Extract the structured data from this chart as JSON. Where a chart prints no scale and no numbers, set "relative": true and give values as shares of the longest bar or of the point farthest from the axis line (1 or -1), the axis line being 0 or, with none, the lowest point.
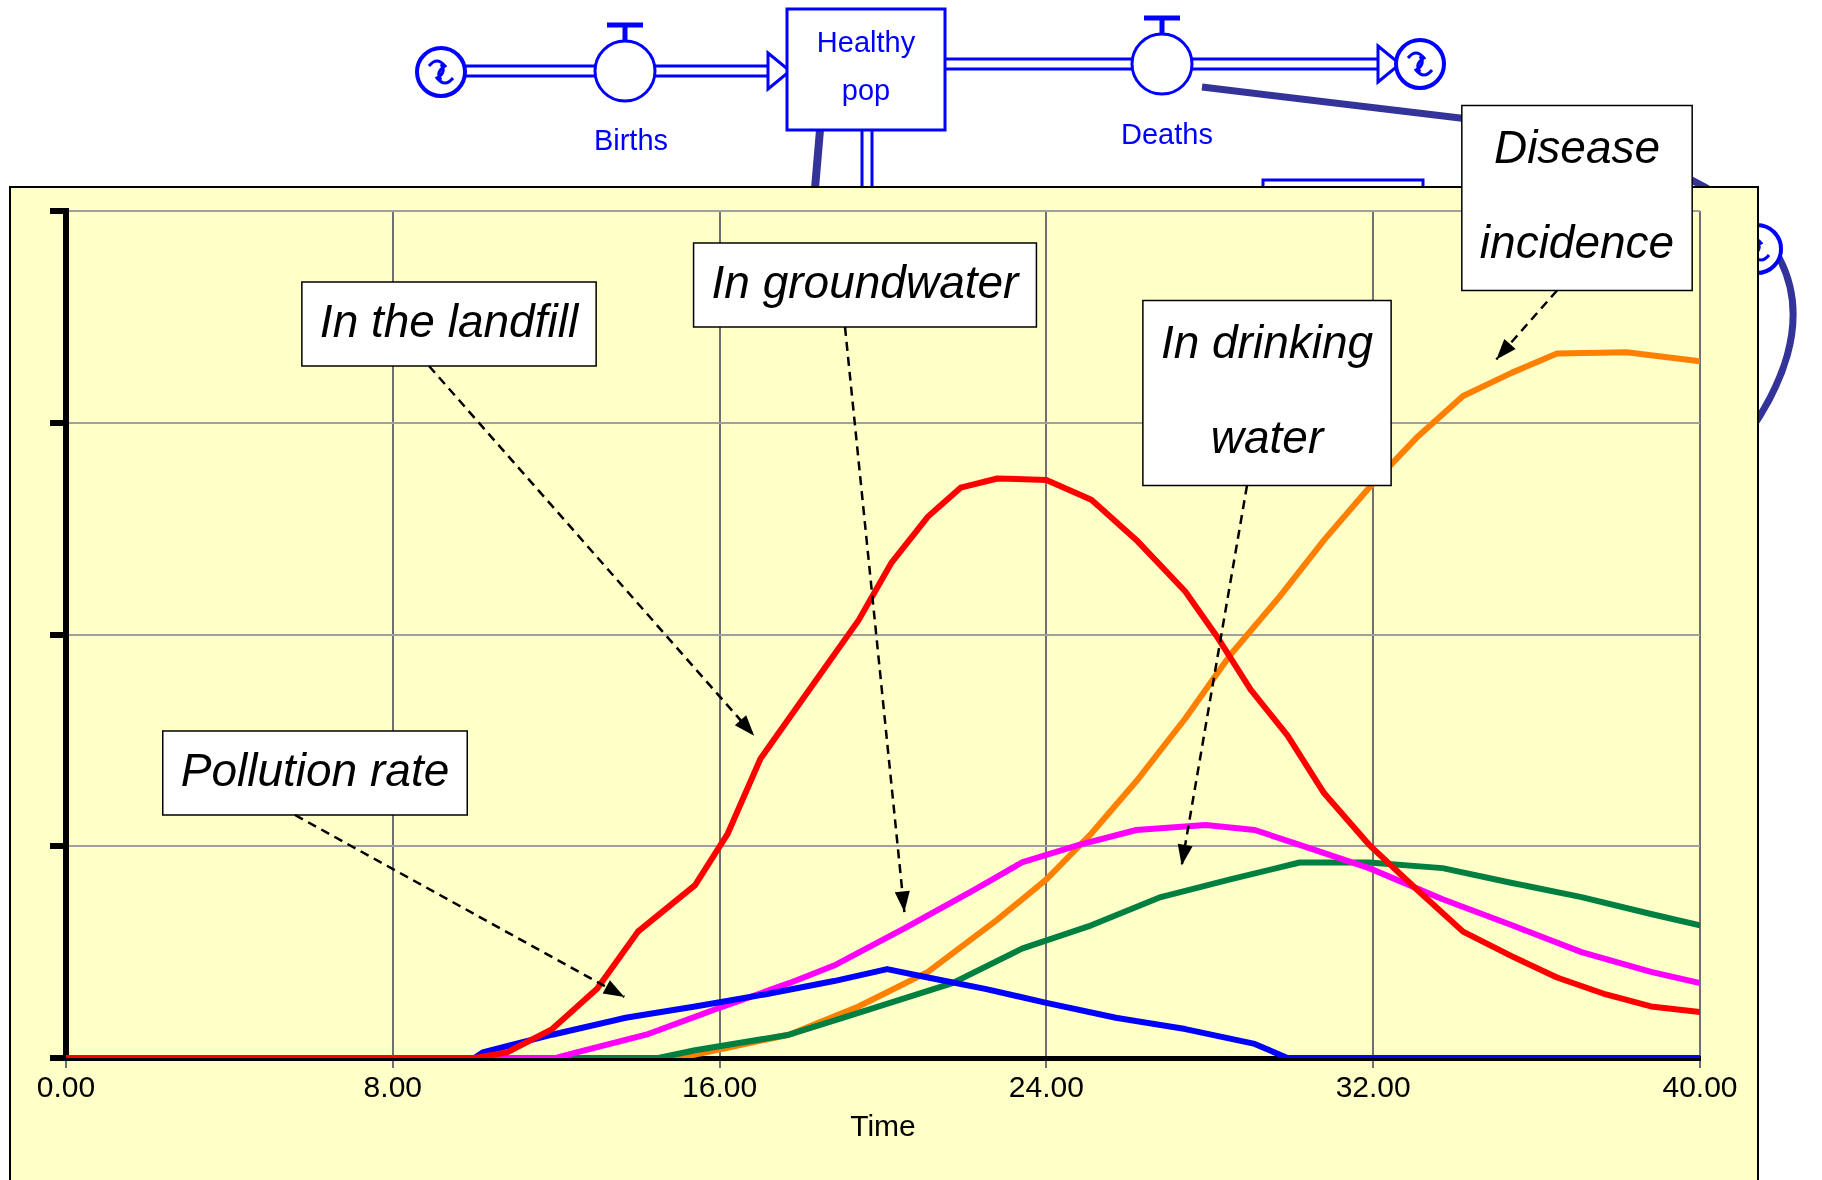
{
  "chart_data": {
    "type": "line",
    "xlabel": "Time",
    "relative": true,
    "grid": true,
    "marker": "none",
    "line_style": "solid",
    "xlim": [
      0,
      40
    ],
    "xticks": [
      {
        "value": 0,
        "label": "0.00"
      },
      {
        "value": 8,
        "label": "8.00"
      },
      {
        "value": 16,
        "label": "16.00"
      },
      {
        "value": 24,
        "label": "24.00"
      },
      {
        "value": 32,
        "label": "32.00"
      },
      {
        "value": 40,
        "label": "40.00"
      }
    ],
    "annotations": [
      "Healthy pop",
      "Births",
      "Deaths",
      "Pollution rate",
      "In the landfill",
      "In groundwater",
      "In drinking water",
      "Disease incidence"
    ],
    "series": [
      {
        "color": "#ff0000",
        "x": [
          0,
          10,
          10.8,
          11.9,
          13,
          14,
          15.4,
          16.2,
          17,
          18.2,
          19.4,
          20.2,
          21.1,
          21.9,
          22.8,
          24,
          25.1,
          26.2,
          27.4,
          28.2,
          29,
          29.9,
          30.8,
          31.9,
          33.1,
          34.2,
          35.4,
          36.5,
          37.7,
          38.8,
          40
        ],
        "values": [
          0,
          0,
          0.008,
          0.041,
          0.098,
          0.179,
          0.245,
          0.318,
          0.424,
          0.522,
          0.62,
          0.701,
          0.767,
          0.808,
          0.821,
          0.819,
          0.791,
          0.734,
          0.661,
          0.595,
          0.522,
          0.457,
          0.375,
          0.302,
          0.237,
          0.179,
          0.144,
          0.114,
          0.09,
          0.073,
          0.065
        ]
      },
      {
        "color": "#0000ff",
        "x": [
          0,
          10,
          10.2,
          11.9,
          13.7,
          15.4,
          17.1,
          18.8,
          20.1,
          21.1,
          22.5,
          24,
          25.7,
          27.4,
          29.1,
          29.9,
          40
        ],
        "values": [
          0,
          0,
          0.008,
          0.033,
          0.057,
          0.073,
          0.09,
          0.109,
          0.126,
          0.114,
          0.098,
          0.078,
          0.057,
          0.041,
          0.02,
          0,
          0
        ]
      },
      {
        "color": "#ff00ff",
        "x": [
          0,
          12,
          12.5,
          14.2,
          15.9,
          17.7,
          18.8,
          20.5,
          22.2,
          23.4,
          24.8,
          26.2,
          27.9,
          29.1,
          30.2,
          31.9,
          33.7,
          35.4,
          37.1,
          38.8,
          40
        ],
        "values": [
          0,
          0,
          0.008,
          0.033,
          0.069,
          0.106,
          0.131,
          0.183,
          0.237,
          0.277,
          0.302,
          0.323,
          0.33,
          0.323,
          0.302,
          0.269,
          0.225,
          0.188,
          0.15,
          0.122,
          0.106
        ]
      },
      {
        "color": "#008040",
        "x": [
          0,
          14.5,
          15.4,
          17.7,
          19.9,
          21.7,
          23.4,
          25.1,
          26.8,
          28.5,
          30.2,
          31.9,
          33.7,
          35.4,
          37.1,
          38.8,
          40
        ],
        "values": [
          0,
          0,
          0.011,
          0.033,
          0.073,
          0.106,
          0.155,
          0.188,
          0.228,
          0.253,
          0.277,
          0.277,
          0.269,
          0.248,
          0.228,
          0.204,
          0.188
        ]
      },
      {
        "color": "#ff8000",
        "x": [
          0,
          15,
          15.9,
          17.7,
          19.4,
          21.1,
          22.8,
          24,
          25.1,
          26.2,
          27.4,
          28.5,
          29.7,
          30.8,
          31.9,
          33.1,
          34.2,
          35.4,
          36.5,
          38.2,
          40
        ],
        "values": [
          0,
          0,
          0.011,
          0.033,
          0.073,
          0.122,
          0.196,
          0.253,
          0.318,
          0.392,
          0.481,
          0.571,
          0.653,
          0.734,
          0.808,
          0.881,
          0.938,
          0.971,
          0.998,
          1,
          0.987
        ]
      }
    ]
  }
}
